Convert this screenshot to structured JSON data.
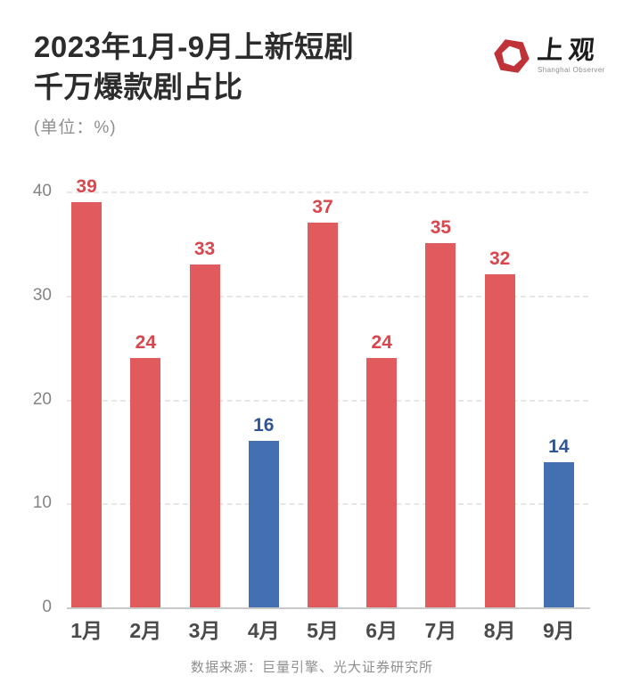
{
  "header": {
    "title_line1": "2023年1月-9月上新短剧",
    "title_line2": "千万爆款剧占比",
    "subtitle": "(单位：%)"
  },
  "logo": {
    "cn": "上观",
    "en": "Shanghai Observer",
    "hex_color": "#bf3338"
  },
  "chart_data": {
    "type": "bar",
    "title": "2023年1月-9月上新短剧千万爆款剧占比",
    "unit": "%",
    "categories": [
      "1月",
      "2月",
      "3月",
      "4月",
      "5月",
      "6月",
      "7月",
      "8月",
      "9月"
    ],
    "values": [
      39,
      24,
      33,
      16,
      37,
      24,
      35,
      32,
      14
    ],
    "bar_colors": [
      "#e15a5e",
      "#e15a5e",
      "#e15a5e",
      "#4470b2",
      "#e15a5e",
      "#e15a5e",
      "#e15a5e",
      "#e15a5e",
      "#4470b2"
    ],
    "label_colors": [
      "#d9464e",
      "#d9464e",
      "#d9464e",
      "#2f5596",
      "#d9464e",
      "#d9464e",
      "#d9464e",
      "#d9464e",
      "#2f5596"
    ],
    "ylim": [
      0,
      40
    ],
    "yticks": [
      0,
      10,
      20,
      30,
      40
    ],
    "grid": "horizontal-dashed",
    "legend": "none",
    "colors": {
      "red_bar": "#e15a5e",
      "blue_bar": "#4470b2",
      "red_label": "#d9464e",
      "blue_label": "#2f5596",
      "gridline": "#e6e6e6",
      "axis_line": "#c9c9c9"
    }
  },
  "footer": {
    "source": "数据来源：巨量引擎、光大证券研究所"
  }
}
